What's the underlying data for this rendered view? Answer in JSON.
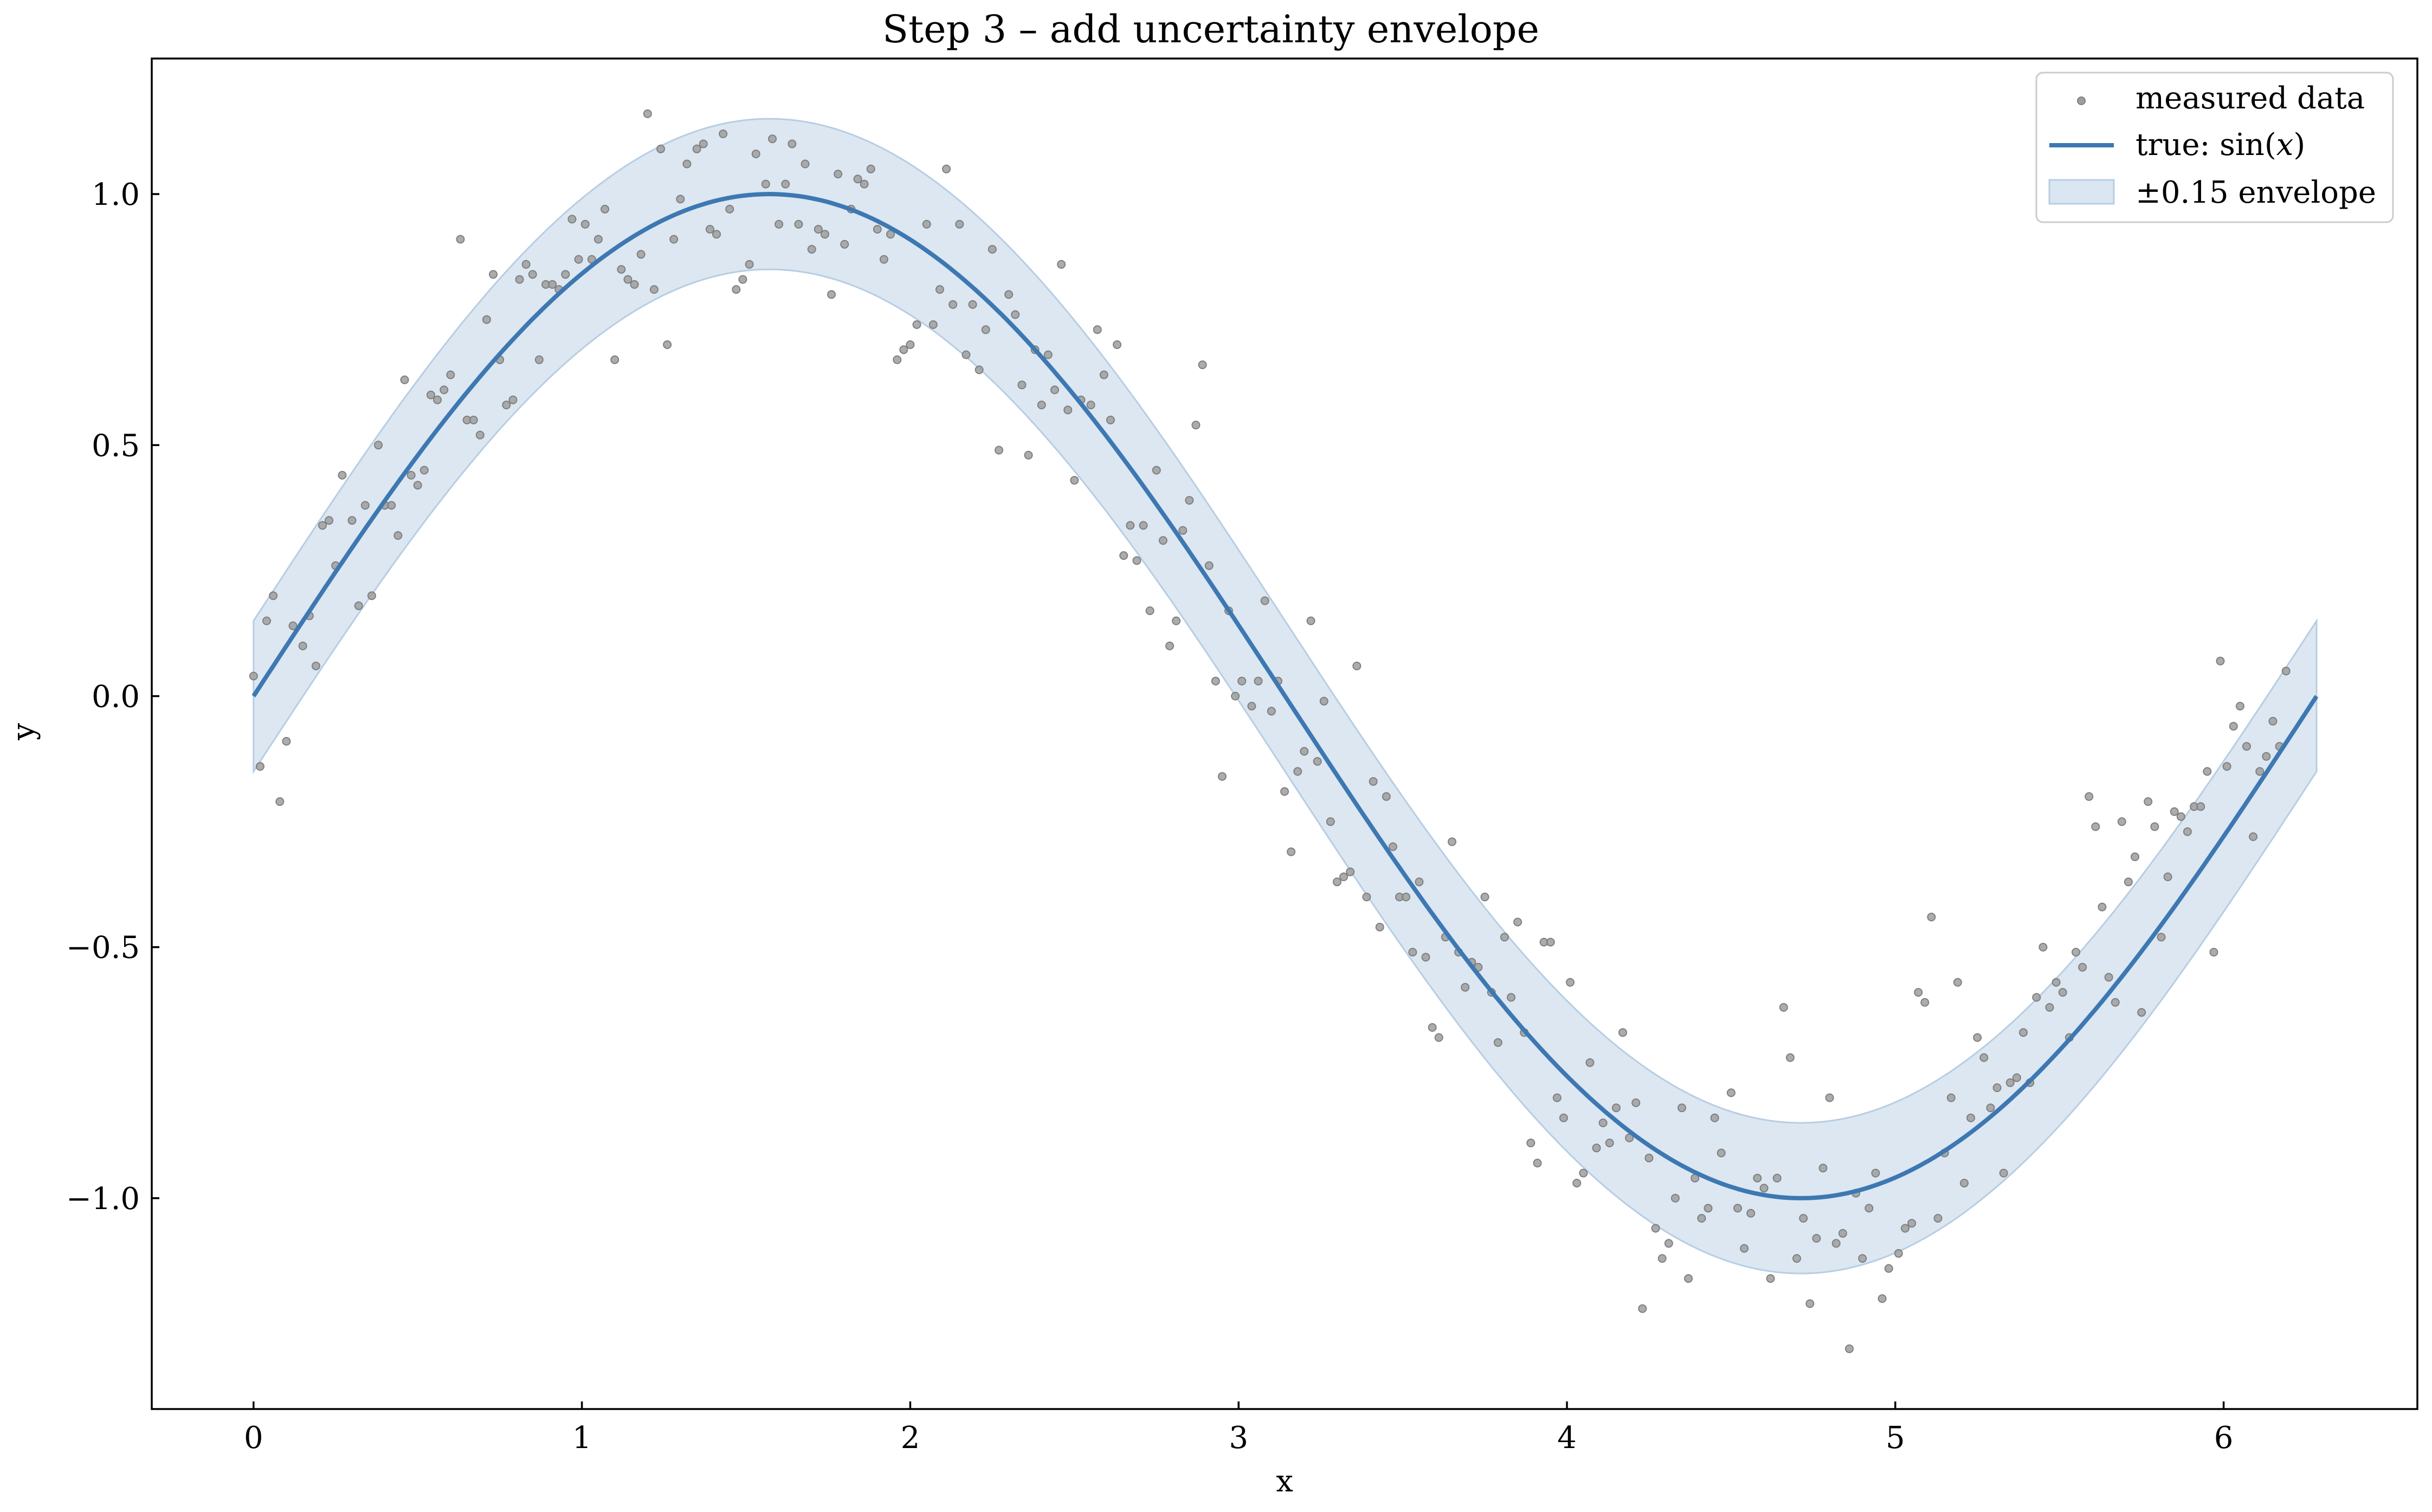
{
  "chart_data": {
    "type": "scatter",
    "title": "Step 3 – add uncertainty envelope",
    "xlabel": "x",
    "ylabel": "y",
    "xlim": [
      -0.31,
      6.59
    ],
    "ylim": [
      -1.42,
      1.27
    ],
    "xticks": [
      0,
      1,
      2,
      3,
      4,
      5,
      6
    ],
    "xtick_labels": [
      "0",
      "1",
      "2",
      "3",
      "4",
      "5",
      "6"
    ],
    "yticks": [
      1.0,
      0.5,
      0.0,
      -0.5,
      -1.0
    ],
    "ytick_labels": [
      "1.0",
      "0.5",
      "0.0",
      "−0.5",
      "−1.0"
    ],
    "grid": false,
    "legend_position": "top-right",
    "legend": [
      {
        "label": "measured data",
        "kind": "marker"
      },
      {
        "label_pre": "true: sin(",
        "label_var": "x",
        "label_post": ")",
        "kind": "line"
      },
      {
        "label": "±0.15 envelope",
        "kind": "patch"
      }
    ],
    "colors": {
      "scatter": "#9e9e9e",
      "line": "#3d78b2",
      "envelope_fill": "#dae6f1",
      "envelope_edge": "#b7cde3",
      "axes": "#000000"
    },
    "series": [
      {
        "name": "measured data",
        "type": "scatter",
        "points": [
          [
            0.0,
            0.04
          ],
          [
            0.02,
            -0.14
          ],
          [
            0.04,
            0.15
          ],
          [
            0.06,
            0.2
          ],
          [
            0.08,
            -0.21
          ],
          [
            0.1,
            -0.09
          ],
          [
            0.12,
            0.14
          ],
          [
            0.15,
            0.1
          ],
          [
            0.17,
            0.16
          ],
          [
            0.19,
            0.06
          ],
          [
            0.21,
            0.34
          ],
          [
            0.23,
            0.35
          ],
          [
            0.25,
            0.26
          ],
          [
            0.27,
            0.44
          ],
          [
            0.3,
            0.35
          ],
          [
            0.32,
            0.18
          ],
          [
            0.34,
            0.38
          ],
          [
            0.36,
            0.2
          ],
          [
            0.38,
            0.5
          ],
          [
            0.4,
            0.38
          ],
          [
            0.42,
            0.38
          ],
          [
            0.44,
            0.32
          ],
          [
            0.46,
            0.63
          ],
          [
            0.48,
            0.44
          ],
          [
            0.5,
            0.42
          ],
          [
            0.52,
            0.45
          ],
          [
            0.54,
            0.6
          ],
          [
            0.56,
            0.59
          ],
          [
            0.58,
            0.61
          ],
          [
            0.6,
            0.64
          ],
          [
            0.63,
            0.91
          ],
          [
            0.65,
            0.55
          ],
          [
            0.67,
            0.55
          ],
          [
            0.69,
            0.52
          ],
          [
            0.71,
            0.75
          ],
          [
            0.73,
            0.84
          ],
          [
            0.75,
            0.67
          ],
          [
            0.77,
            0.58
          ],
          [
            0.79,
            0.59
          ],
          [
            0.81,
            0.83
          ],
          [
            0.83,
            0.86
          ],
          [
            0.85,
            0.84
          ],
          [
            0.87,
            0.67
          ],
          [
            0.89,
            0.82
          ],
          [
            0.91,
            0.82
          ],
          [
            0.93,
            0.81
          ],
          [
            0.95,
            0.84
          ],
          [
            0.97,
            0.95
          ],
          [
            0.99,
            0.87
          ],
          [
            1.01,
            0.94
          ],
          [
            1.03,
            0.87
          ],
          [
            1.05,
            0.91
          ],
          [
            1.07,
            0.97
          ],
          [
            1.1,
            0.67
          ],
          [
            1.12,
            0.85
          ],
          [
            1.14,
            0.83
          ],
          [
            1.16,
            0.82
          ],
          [
            1.18,
            0.88
          ],
          [
            1.2,
            1.16
          ],
          [
            1.22,
            0.81
          ],
          [
            1.24,
            1.09
          ],
          [
            1.26,
            0.7
          ],
          [
            1.28,
            0.91
          ],
          [
            1.3,
            0.99
          ],
          [
            1.32,
            1.06
          ],
          [
            1.35,
            1.09
          ],
          [
            1.37,
            1.1
          ],
          [
            1.39,
            0.93
          ],
          [
            1.41,
            0.92
          ],
          [
            1.43,
            1.12
          ],
          [
            1.45,
            0.97
          ],
          [
            1.47,
            0.81
          ],
          [
            1.49,
            0.83
          ],
          [
            1.51,
            0.86
          ],
          [
            1.53,
            1.08
          ],
          [
            1.56,
            1.02
          ],
          [
            1.58,
            1.11
          ],
          [
            1.6,
            0.94
          ],
          [
            1.62,
            1.02
          ],
          [
            1.64,
            1.1
          ],
          [
            1.66,
            0.94
          ],
          [
            1.68,
            1.06
          ],
          [
            1.7,
            0.89
          ],
          [
            1.72,
            0.93
          ],
          [
            1.74,
            0.92
          ],
          [
            1.76,
            0.8
          ],
          [
            1.78,
            1.04
          ],
          [
            1.8,
            0.9
          ],
          [
            1.82,
            0.97
          ],
          [
            1.84,
            1.03
          ],
          [
            1.86,
            1.02
          ],
          [
            1.88,
            1.05
          ],
          [
            1.9,
            0.93
          ],
          [
            1.92,
            0.87
          ],
          [
            1.94,
            0.92
          ],
          [
            1.96,
            0.67
          ],
          [
            1.98,
            0.69
          ],
          [
            2.0,
            0.7
          ],
          [
            2.02,
            0.74
          ],
          [
            2.05,
            0.94
          ],
          [
            2.07,
            0.74
          ],
          [
            2.09,
            0.81
          ],
          [
            2.11,
            1.05
          ],
          [
            2.13,
            0.78
          ],
          [
            2.15,
            0.94
          ],
          [
            2.17,
            0.68
          ],
          [
            2.19,
            0.78
          ],
          [
            2.21,
            0.65
          ],
          [
            2.23,
            0.73
          ],
          [
            2.25,
            0.89
          ],
          [
            2.27,
            0.49
          ],
          [
            2.3,
            0.8
          ],
          [
            2.32,
            0.76
          ],
          [
            2.34,
            0.62
          ],
          [
            2.36,
            0.48
          ],
          [
            2.38,
            0.69
          ],
          [
            2.4,
            0.58
          ],
          [
            2.42,
            0.68
          ],
          [
            2.44,
            0.61
          ],
          [
            2.46,
            0.86
          ],
          [
            2.48,
            0.57
          ],
          [
            2.5,
            0.43
          ],
          [
            2.52,
            0.59
          ],
          [
            2.55,
            0.58
          ],
          [
            2.57,
            0.73
          ],
          [
            2.59,
            0.64
          ],
          [
            2.61,
            0.55
          ],
          [
            2.63,
            0.7
          ],
          [
            2.65,
            0.28
          ],
          [
            2.67,
            0.34
          ],
          [
            2.69,
            0.27
          ],
          [
            2.71,
            0.34
          ],
          [
            2.73,
            0.17
          ],
          [
            2.75,
            0.45
          ],
          [
            2.77,
            0.31
          ],
          [
            2.79,
            0.1
          ],
          [
            2.81,
            0.15
          ],
          [
            2.83,
            0.33
          ],
          [
            2.85,
            0.39
          ],
          [
            2.87,
            0.54
          ],
          [
            2.89,
            0.66
          ],
          [
            2.91,
            0.26
          ],
          [
            2.93,
            0.03
          ],
          [
            2.95,
            -0.16
          ],
          [
            2.97,
            0.17
          ],
          [
            2.99,
            0.0
          ],
          [
            3.01,
            0.03
          ],
          [
            3.04,
            -0.02
          ],
          [
            3.06,
            0.03
          ],
          [
            3.08,
            0.19
          ],
          [
            3.1,
            -0.03
          ],
          [
            3.12,
            0.03
          ],
          [
            3.14,
            -0.19
          ],
          [
            3.16,
            -0.31
          ],
          [
            3.18,
            -0.15
          ],
          [
            3.2,
            -0.11
          ],
          [
            3.22,
            0.15
          ],
          [
            3.24,
            -0.13
          ],
          [
            3.26,
            -0.01
          ],
          [
            3.28,
            -0.25
          ],
          [
            3.3,
            -0.37
          ],
          [
            3.32,
            -0.36
          ],
          [
            3.34,
            -0.35
          ],
          [
            3.36,
            0.06
          ],
          [
            3.39,
            -0.4
          ],
          [
            3.41,
            -0.17
          ],
          [
            3.43,
            -0.46
          ],
          [
            3.45,
            -0.2
          ],
          [
            3.47,
            -0.3
          ],
          [
            3.49,
            -0.4
          ],
          [
            3.51,
            -0.4
          ],
          [
            3.53,
            -0.51
          ],
          [
            3.55,
            -0.37
          ],
          [
            3.57,
            -0.52
          ],
          [
            3.59,
            -0.66
          ],
          [
            3.61,
            -0.68
          ],
          [
            3.63,
            -0.48
          ],
          [
            3.65,
            -0.29
          ],
          [
            3.67,
            -0.51
          ],
          [
            3.69,
            -0.58
          ],
          [
            3.71,
            -0.53
          ],
          [
            3.73,
            -0.54
          ],
          [
            3.75,
            -0.4
          ],
          [
            3.77,
            -0.59
          ],
          [
            3.79,
            -0.69
          ],
          [
            3.81,
            -0.48
          ],
          [
            3.83,
            -0.6
          ],
          [
            3.85,
            -0.45
          ],
          [
            3.87,
            -0.67
          ],
          [
            3.89,
            -0.89
          ],
          [
            3.91,
            -0.93
          ],
          [
            3.93,
            -0.49
          ],
          [
            3.95,
            -0.49
          ],
          [
            3.97,
            -0.8
          ],
          [
            3.99,
            -0.84
          ],
          [
            4.01,
            -0.57
          ],
          [
            4.03,
            -0.97
          ],
          [
            4.05,
            -0.95
          ],
          [
            4.07,
            -0.73
          ],
          [
            4.09,
            -0.9
          ],
          [
            4.11,
            -0.85
          ],
          [
            4.13,
            -0.89
          ],
          [
            4.15,
            -0.82
          ],
          [
            4.17,
            -0.67
          ],
          [
            4.19,
            -0.88
          ],
          [
            4.21,
            -0.81
          ],
          [
            4.23,
            -1.22
          ],
          [
            4.25,
            -0.92
          ],
          [
            4.27,
            -1.06
          ],
          [
            4.29,
            -1.12
          ],
          [
            4.31,
            -1.09
          ],
          [
            4.33,
            -1.0
          ],
          [
            4.35,
            -0.82
          ],
          [
            4.37,
            -1.16
          ],
          [
            4.39,
            -0.96
          ],
          [
            4.41,
            -1.04
          ],
          [
            4.43,
            -1.02
          ],
          [
            4.45,
            -0.84
          ],
          [
            4.47,
            -0.91
          ],
          [
            4.5,
            -0.79
          ],
          [
            4.52,
            -1.02
          ],
          [
            4.54,
            -1.1
          ],
          [
            4.56,
            -1.03
          ],
          [
            4.58,
            -0.96
          ],
          [
            4.6,
            -0.98
          ],
          [
            4.62,
            -1.16
          ],
          [
            4.64,
            -0.96
          ],
          [
            4.66,
            -0.62
          ],
          [
            4.68,
            -0.72
          ],
          [
            4.7,
            -1.12
          ],
          [
            4.72,
            -1.04
          ],
          [
            4.74,
            -1.21
          ],
          [
            4.76,
            -1.08
          ],
          [
            4.78,
            -0.94
          ],
          [
            4.8,
            -0.8
          ],
          [
            4.82,
            -1.09
          ],
          [
            4.84,
            -1.07
          ],
          [
            4.86,
            -1.3
          ],
          [
            4.88,
            -0.99
          ],
          [
            4.9,
            -1.12
          ],
          [
            4.92,
            -1.02
          ],
          [
            4.94,
            -0.95
          ],
          [
            4.96,
            -1.2
          ],
          [
            4.98,
            -1.14
          ],
          [
            5.01,
            -1.11
          ],
          [
            5.03,
            -1.06
          ],
          [
            5.05,
            -1.05
          ],
          [
            5.07,
            -0.59
          ],
          [
            5.09,
            -0.61
          ],
          [
            5.11,
            -0.44
          ],
          [
            5.13,
            -1.04
          ],
          [
            5.15,
            -0.91
          ],
          [
            5.17,
            -0.8
          ],
          [
            5.19,
            -0.57
          ],
          [
            5.21,
            -0.97
          ],
          [
            5.23,
            -0.84
          ],
          [
            5.25,
            -0.68
          ],
          [
            5.27,
            -0.72
          ],
          [
            5.29,
            -0.82
          ],
          [
            5.31,
            -0.78
          ],
          [
            5.33,
            -0.95
          ],
          [
            5.35,
            -0.77
          ],
          [
            5.37,
            -0.76
          ],
          [
            5.39,
            -0.67
          ],
          [
            5.41,
            -0.77
          ],
          [
            5.43,
            -0.6
          ],
          [
            5.45,
            -0.5
          ],
          [
            5.47,
            -0.62
          ],
          [
            5.49,
            -0.57
          ],
          [
            5.51,
            -0.59
          ],
          [
            5.53,
            -0.68
          ],
          [
            5.55,
            -0.51
          ],
          [
            5.57,
            -0.54
          ],
          [
            5.59,
            -0.2
          ],
          [
            5.61,
            -0.26
          ],
          [
            5.63,
            -0.42
          ],
          [
            5.65,
            -0.56
          ],
          [
            5.67,
            -0.61
          ],
          [
            5.69,
            -0.25
          ],
          [
            5.71,
            -0.37
          ],
          [
            5.73,
            -0.32
          ],
          [
            5.75,
            -0.63
          ],
          [
            5.77,
            -0.21
          ],
          [
            5.79,
            -0.26
          ],
          [
            5.81,
            -0.48
          ],
          [
            5.83,
            -0.36
          ],
          [
            5.85,
            -0.23
          ],
          [
            5.87,
            -0.24
          ],
          [
            5.89,
            -0.27
          ],
          [
            5.91,
            -0.22
          ],
          [
            5.93,
            -0.22
          ],
          [
            5.95,
            -0.15
          ],
          [
            5.97,
            -0.51
          ],
          [
            5.99,
            0.07
          ],
          [
            6.01,
            -0.14
          ],
          [
            6.03,
            -0.06
          ],
          [
            6.05,
            -0.02
          ],
          [
            6.07,
            -0.1
          ],
          [
            6.09,
            -0.28
          ],
          [
            6.11,
            -0.15
          ],
          [
            6.13,
            -0.12
          ],
          [
            6.15,
            -0.05
          ],
          [
            6.17,
            -0.1
          ],
          [
            6.19,
            0.05
          ]
        ]
      },
      {
        "name": "true: sin(x)",
        "type": "line",
        "function": "sin",
        "x_range": [
          0,
          6.283
        ]
      },
      {
        "name": "±0.15 envelope",
        "type": "area",
        "band_halfwidth": 0.15,
        "x_range": [
          0,
          6.283
        ]
      }
    ]
  }
}
